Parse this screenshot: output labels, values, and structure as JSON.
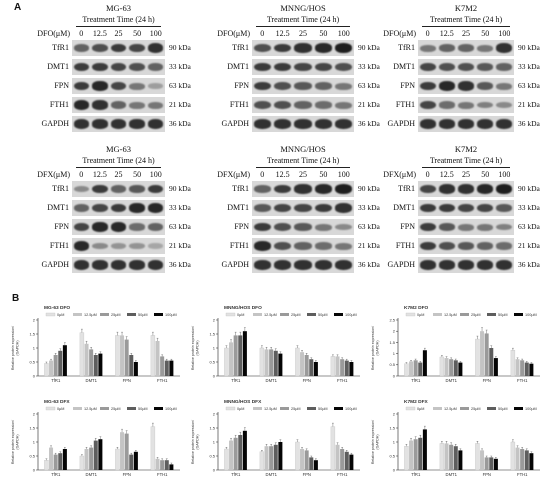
{
  "panel_labels": {
    "a": "A",
    "b": "B"
  },
  "western_blots": [
    {
      "cell_line": "MG-63",
      "treatment": "Treatment Time (24 h)",
      "drug_label": "DFO(μM)",
      "doses": [
        "0",
        "12.5",
        "25",
        "50",
        "100"
      ],
      "proteins": [
        {
          "name": "TfR1",
          "kda": "90 kDa"
        },
        {
          "name": "DMT1",
          "kda": "33 kDa"
        },
        {
          "name": "FPN",
          "kda": "63 kDa"
        },
        {
          "name": "FTH1",
          "kda": "21 kDa"
        },
        {
          "name": "GAPDH",
          "kda": "36 kDa"
        }
      ]
    },
    {
      "cell_line": "MNNG/HOS",
      "treatment": "Treatment Time (24 h)",
      "drug_label": "DFO(μM)",
      "doses": [
        "0",
        "12.5",
        "25",
        "50",
        "100"
      ],
      "proteins": [
        {
          "name": "TfR1",
          "kda": "90 kDa"
        },
        {
          "name": "DMT1",
          "kda": "33 kDa"
        },
        {
          "name": "FPN",
          "kda": "63 kDa"
        },
        {
          "name": "FTH1",
          "kda": "21 kDa"
        },
        {
          "name": "GAPDH",
          "kda": "36 kDa"
        }
      ]
    },
    {
      "cell_line": "K7M2",
      "treatment": "Treatment Time (24 h)",
      "drug_label": "DFO(μM)",
      "doses": [
        "0",
        "12.5",
        "25",
        "50",
        "100"
      ],
      "proteins": [
        {
          "name": "TfR1",
          "kda": "90 kDa"
        },
        {
          "name": "DMT1",
          "kda": "33 kDa"
        },
        {
          "name": "FPN",
          "kda": "63 kDa"
        },
        {
          "name": "FTH1",
          "kda": "21 kDa"
        },
        {
          "name": "GAPDH",
          "kda": "36 kDa"
        }
      ]
    },
    {
      "cell_line": "MG-63",
      "treatment": "Treatment Time (24 h)",
      "drug_label": "DFX(μM)",
      "doses": [
        "0",
        "12.5",
        "25",
        "50",
        "100"
      ],
      "proteins": [
        {
          "name": "TfR1",
          "kda": "90 kDa"
        },
        {
          "name": "DMT1",
          "kda": "33 kDa"
        },
        {
          "name": "FPN",
          "kda": "63 kDa"
        },
        {
          "name": "FTH1",
          "kda": "21 kDa"
        },
        {
          "name": "GAPDH",
          "kda": "36 kDa"
        }
      ]
    },
    {
      "cell_line": "MNNG/HOS",
      "treatment": "Treatment Time (24 h)",
      "drug_label": "DFX(μM)",
      "doses": [
        "0",
        "12.5",
        "25",
        "50",
        "100"
      ],
      "proteins": [
        {
          "name": "TfR1",
          "kda": "90 kDa"
        },
        {
          "name": "DMT1",
          "kda": "33 kDa"
        },
        {
          "name": "FPN",
          "kda": "63 kDa"
        },
        {
          "name": "FTH1",
          "kda": "21 kDa"
        },
        {
          "name": "GAPDH",
          "kda": "36 kDa"
        }
      ]
    },
    {
      "cell_line": "K7M2",
      "treatment": "Treatment Time (24 h)",
      "drug_label": "DFX(μM)",
      "doses": [
        "0",
        "12.5",
        "25",
        "50",
        "100"
      ],
      "proteins": [
        {
          "name": "TfR1",
          "kda": "90 kDa"
        },
        {
          "name": "DMT1",
          "kda": "33 kDa"
        },
        {
          "name": "FPN",
          "kda": "63 kDa"
        },
        {
          "name": "FTH1",
          "kda": "21 kDa"
        },
        {
          "name": "GAPDH",
          "kda": "36 kDa"
        }
      ]
    }
  ],
  "bar_style": {
    "colors": [
      "#e2e2e2",
      "#c4c4c4",
      "#9a9a9a",
      "#5e5e5e",
      "#050505"
    ]
  },
  "chart_data": [
    {
      "type": "bar",
      "title": "MG-63 DFO",
      "ylabel": "Relative protein expression/\n(GAPDH)",
      "categories": [
        "TfR1",
        "DMT1",
        "FPN",
        "FTH1"
      ],
      "ylim": [
        0,
        2
      ],
      "yticks": [
        0,
        0.5,
        1,
        1.5,
        2
      ],
      "series": [
        {
          "name": "0μM",
          "values": [
            0.45,
            1.55,
            1.45,
            1.45
          ]
        },
        {
          "name": "12.5μM",
          "values": [
            0.55,
            1.15,
            1.45,
            1.25
          ]
        },
        {
          "name": "25μM",
          "values": [
            0.75,
            0.95,
            1.3,
            0.7
          ]
        },
        {
          "name": "50μM",
          "values": [
            0.9,
            0.75,
            0.75,
            0.55
          ]
        },
        {
          "name": "100μM",
          "values": [
            1.1,
            0.8,
            0.5,
            0.55
          ]
        }
      ]
    },
    {
      "type": "bar",
      "title": "MNNG/HOS DFO",
      "ylabel": "Relative protein expression/\n(GAPDH)",
      "categories": [
        "TfR1",
        "DMT1",
        "FPN",
        "FTH1"
      ],
      "ylim": [
        0,
        2
      ],
      "yticks": [
        0,
        0.5,
        1,
        1.5,
        2
      ],
      "series": [
        {
          "name": "0μM",
          "values": [
            1.0,
            1.0,
            1.0,
            0.7
          ]
        },
        {
          "name": "12.5μM",
          "values": [
            1.2,
            0.95,
            0.85,
            0.7
          ]
        },
        {
          "name": "25μM",
          "values": [
            1.45,
            0.95,
            0.75,
            0.6
          ]
        },
        {
          "name": "50μM",
          "values": [
            1.45,
            0.9,
            0.6,
            0.55
          ]
        },
        {
          "name": "100μM",
          "values": [
            1.6,
            0.8,
            0.5,
            0.5
          ]
        }
      ]
    },
    {
      "type": "bar",
      "title": "K7M2 DFO",
      "ylabel": "Relative protein expression/\n(GAPDH)",
      "categories": [
        "TfR1",
        "DMT1",
        "FPN",
        "FTH1"
      ],
      "ylim": [
        0,
        2.5
      ],
      "yticks": [
        0,
        0.5,
        1,
        1.5,
        2,
        2.5
      ],
      "series": [
        {
          "name": "0μM",
          "values": [
            0.55,
            0.85,
            1.65,
            1.15
          ]
        },
        {
          "name": "12.5μM",
          "values": [
            0.65,
            0.8,
            2.0,
            0.75
          ]
        },
        {
          "name": "25μM",
          "values": [
            0.7,
            0.75,
            1.9,
            0.7
          ]
        },
        {
          "name": "50μM",
          "values": [
            0.6,
            0.7,
            1.25,
            0.6
          ]
        },
        {
          "name": "100μM",
          "values": [
            1.15,
            0.6,
            0.8,
            0.55
          ]
        }
      ]
    },
    {
      "type": "bar",
      "title": "MG-63 DFX",
      "ylabel": "Relative protein expression/\n(GAPDH)",
      "categories": [
        "TfR1",
        "DMT1",
        "FPN",
        "FTH1"
      ],
      "ylim": [
        0,
        2
      ],
      "yticks": [
        0,
        0.5,
        1,
        1.5,
        2
      ],
      "series": [
        {
          "name": "0μM",
          "values": [
            0.35,
            0.5,
            0.75,
            1.55
          ]
        },
        {
          "name": "12.5μM",
          "values": [
            0.8,
            0.75,
            1.35,
            0.4
          ]
        },
        {
          "name": "25μM",
          "values": [
            0.55,
            0.8,
            1.3,
            0.35
          ]
        },
        {
          "name": "50μM",
          "values": [
            0.6,
            1.05,
            0.55,
            0.35
          ]
        },
        {
          "name": "100μM",
          "values": [
            0.75,
            1.1,
            0.65,
            0.2
          ]
        }
      ]
    },
    {
      "type": "bar",
      "title": "MNNG/HOS DFX",
      "ylabel": "Relative protein expression/\n(GAPDH)",
      "categories": [
        "TfR1",
        "DMT1",
        "FPN",
        "FTH1"
      ],
      "ylim": [
        0,
        2
      ],
      "yticks": [
        0,
        0.5,
        1,
        1.5,
        2
      ],
      "series": [
        {
          "name": "0μM",
          "values": [
            0.75,
            0.65,
            1.0,
            1.55
          ]
        },
        {
          "name": "12.5μM",
          "values": [
            1.05,
            0.85,
            0.75,
            0.9
          ]
        },
        {
          "name": "25μM",
          "values": [
            1.15,
            0.85,
            0.7,
            0.75
          ]
        },
        {
          "name": "50μM",
          "values": [
            1.25,
            0.9,
            0.45,
            0.65
          ]
        },
        {
          "name": "100μM",
          "values": [
            1.4,
            1.0,
            0.35,
            0.55
          ]
        }
      ]
    },
    {
      "type": "bar",
      "title": "K7M2 DFX",
      "ylabel": "Relative protein expression/\n(GAPDH)",
      "categories": [
        "TfR1",
        "DMT1",
        "FPN",
        "FTH1"
      ],
      "ylim": [
        0,
        2
      ],
      "yticks": [
        0,
        0.5,
        1,
        1.5,
        2
      ],
      "series": [
        {
          "name": "0μM",
          "values": [
            0.85,
            0.95,
            0.95,
            1.0
          ]
        },
        {
          "name": "12.5μM",
          "values": [
            1.05,
            0.95,
            0.7,
            0.8
          ]
        },
        {
          "name": "25μM",
          "values": [
            1.1,
            0.9,
            0.45,
            0.75
          ]
        },
        {
          "name": "50μM",
          "values": [
            1.15,
            0.85,
            0.45,
            0.7
          ]
        },
        {
          "name": "100μM",
          "values": [
            1.45,
            0.7,
            0.4,
            0.6
          ]
        }
      ]
    }
  ]
}
